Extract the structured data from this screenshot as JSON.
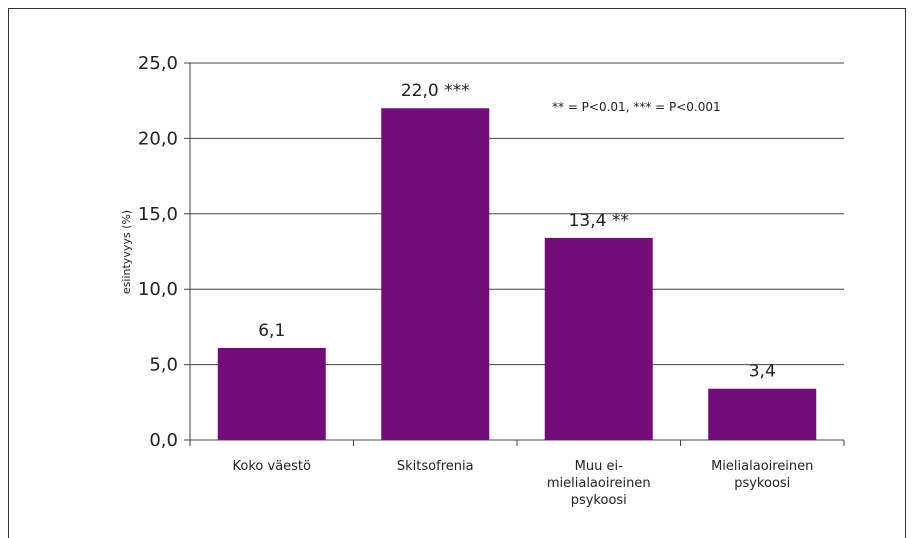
{
  "chart_data": {
    "type": "bar",
    "categories": [
      [
        "Koko väestö"
      ],
      [
        "Skitsofrenia"
      ],
      [
        "Muu ei-",
        "mielialaoireinen",
        "psykoosi"
      ],
      [
        "Mielialaoireinen",
        "psykoosi"
      ]
    ],
    "values": [
      6.1,
      22.0,
      13.4,
      3.4
    ],
    "data_labels": [
      "6,1",
      "22,0 ***",
      "13,4 **",
      "3,4"
    ],
    "ylabel": "esiintyvyys (%)",
    "ylim": [
      0,
      25
    ],
    "yticks": [
      0,
      5,
      10,
      15,
      20,
      25
    ],
    "ytick_labels": [
      "0,0",
      "5,0",
      "10,0",
      "15,0",
      "20,0",
      "25,0"
    ],
    "annotation": "** = P<0.01, *** = P<0.001",
    "bar_color": "#730C78",
    "grid": true
  }
}
